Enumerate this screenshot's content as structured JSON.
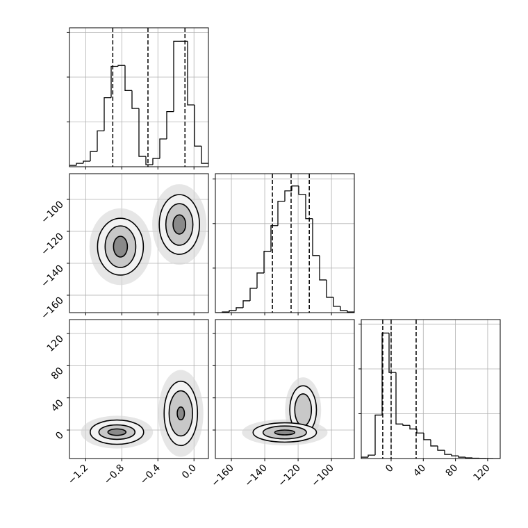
{
  "chart_data": [
    {
      "type": "histogram",
      "xlim": [
        -1.38,
        0.16
      ],
      "ylim": [
        0,
        1550
      ],
      "xticks": [
        -1.2,
        -0.8,
        -0.4,
        0.0
      ],
      "yticks": [
        500,
        1000,
        1500
      ],
      "xtick_labels": false,
      "ytick_labels": false,
      "bins": [
        -1.38,
        -1.303,
        -1.226,
        -1.149,
        -1.072,
        -0.995,
        -0.918,
        -0.841,
        -0.764,
        -0.687,
        -0.61,
        -0.533,
        -0.456,
        -0.379,
        -0.302,
        -0.225,
        -0.148,
        -0.071,
        0.006,
        0.083,
        0.16
      ],
      "counts": [
        15,
        38,
        62,
        170,
        400,
        770,
        1120,
        1130,
        850,
        650,
        115,
        23,
        92,
        310,
        615,
        1400,
        1400,
        690,
        230,
        38
      ],
      "quantiles": [
        -0.9,
        -0.51,
        -0.1
      ],
      "color": "#000000",
      "grid": true
    },
    {
      "type": "contour",
      "xlim": [
        -1.38,
        0.16
      ],
      "ylim": [
        -170.9,
        -83.9
      ],
      "xticks": [
        -1.2,
        -0.8,
        -0.4,
        0.0
      ],
      "yticks": [
        {
          "value": -100,
          "label": "−100"
        },
        {
          "value": -120,
          "label": "−120"
        },
        {
          "value": -140,
          "label": "−140"
        },
        {
          "value": -160,
          "label": "−160"
        }
      ],
      "xtick_labels": false,
      "ytick_labels": true,
      "color": "#000000",
      "level_fills": [
        "#f2f2f2",
        "#c8c8c8",
        "#8a8a8a"
      ],
      "grid": true,
      "components": [
        {
          "x": -0.815,
          "y": -129.6,
          "levels": [
            {
              "rx": 0.254,
              "ry": 17.8
            },
            {
              "rx": 0.17,
              "ry": 13
            },
            {
              "rx": 0.077,
              "ry": 6.5
            }
          ]
        },
        {
          "x": -0.162,
          "y": -115.7,
          "levels": [
            {
              "rx": 0.223,
              "ry": 18.7
            },
            {
              "rx": 0.15,
              "ry": 13
            },
            {
              "rx": 0.07,
              "ry": 6
            }
          ]
        }
      ]
    },
    {
      "type": "histogram",
      "xlim": [
        -169.6,
        -86.3
      ],
      "ylim": [
        0,
        1560
      ],
      "xticks": [
        -160,
        -140,
        -120,
        -100
      ],
      "yticks": [
        500,
        1000,
        1500
      ],
      "xtick_labels": false,
      "ytick_labels": false,
      "bins": [
        -169.6,
        -165.435,
        -161.27,
        -157.105,
        -152.94,
        -148.775,
        -144.61,
        -140.445,
        -136.28,
        -132.115,
        -127.95,
        -123.785,
        -119.62,
        -115.455,
        -111.29,
        -107.125,
        -102.96,
        -98.795,
        -94.63,
        -90.465,
        -86.3
      ],
      "counts": [
        0,
        8,
        23,
        55,
        133,
        273,
        445,
        688,
        977,
        1250,
        1367,
        1422,
        1328,
        1055,
        641,
        367,
        172,
        70,
        23,
        8
      ],
      "quantiles": [
        -135.4,
        -124.2,
        -113.3
      ],
      "color": "#000000",
      "grid": true
    },
    {
      "type": "contour",
      "xlim": [
        -1.38,
        0.16
      ],
      "ylim": [
        -35.4,
        137.3
      ],
      "xticks": [
        {
          "value": -1.2,
          "label": "−1.2"
        },
        {
          "value": -0.8,
          "label": "−0.8"
        },
        {
          "value": -0.4,
          "label": "−0.4"
        },
        {
          "value": 0.0,
          "label": "0.0"
        }
      ],
      "yticks": [
        0,
        40,
        80,
        120
      ],
      "xtick_labels": true,
      "ytick_labels": true,
      "color": "#000000",
      "level_fills": [
        "#f2f2f2",
        "#c8c8c8",
        "#8a8a8a"
      ],
      "grid": true,
      "components": [
        {
          "x": -0.854,
          "y": -2.6,
          "levels": [
            {
              "rx": 0.296,
              "ry": 15.1
            },
            {
              "rx": 0.2,
              "ry": 9
            },
            {
              "rx": 0.1,
              "ry": 4
            }
          ]
        },
        {
          "x": -0.146,
          "y": 20.7,
          "levels": [
            {
              "rx": 0.185,
              "ry": 40
            },
            {
              "rx": 0.13,
              "ry": 28
            },
            {
              "rx": 0.04,
              "ry": 8
            }
          ]
        }
      ]
    },
    {
      "type": "contour",
      "xlim": [
        -169.6,
        -86.3
      ],
      "ylim": [
        -35.4,
        137.3
      ],
      "xticks": [
        {
          "value": -160,
          "label": "−160"
        },
        {
          "value": -140,
          "label": "−140"
        },
        {
          "value": -120,
          "label": "−120"
        },
        {
          "value": -100,
          "label": "−100"
        }
      ],
      "yticks": [
        0,
        40,
        80,
        120
      ],
      "xtick_labels": true,
      "ytick_labels": false,
      "color": "#000000",
      "level_fills": [
        "#f2f2f2",
        "#c8c8c8",
        "#8a8a8a"
      ],
      "grid": true,
      "components": [
        {
          "x": -117,
          "y": 25,
          "levels": [
            {
              "rx": 8,
              "ry": 30
            },
            {
              "rx": 5,
              "ry": 20
            }
          ]
        },
        {
          "x": -128,
          "y": -3,
          "levels": [
            {
              "rx": 19,
              "ry": 12
            },
            {
              "rx": 13,
              "ry": 8
            },
            {
              "rx": 6,
              "ry": 3
            }
          ]
        }
      ]
    },
    {
      "type": "histogram",
      "xlim": [
        -37.1,
        135.6
      ],
      "ylim": [
        0,
        1550
      ],
      "xticks": [
        0,
        40,
        80,
        120
      ],
      "yticks": [
        500,
        1000,
        1500
      ],
      "xtick_labels": true,
      "ytick_labels": false,
      "bins": [
        -37.1,
        -28.465,
        -19.83,
        -11.195,
        -2.56,
        6.075,
        14.71,
        23.345,
        31.98,
        40.615,
        49.25,
        57.885,
        66.52,
        75.155,
        83.79,
        92.425,
        101.06,
        109.695,
        118.33,
        126.965,
        135.6
      ],
      "counts": [
        15,
        38,
        485,
        1400,
        960,
        385,
        370,
        330,
        285,
        210,
        140,
        92,
        46,
        30,
        15,
        8,
        4,
        2,
        1,
        0
      ],
      "quantiles": [
        -10.4,
        0,
        31.1
      ],
      "color": "#000000",
      "grid": true
    }
  ]
}
